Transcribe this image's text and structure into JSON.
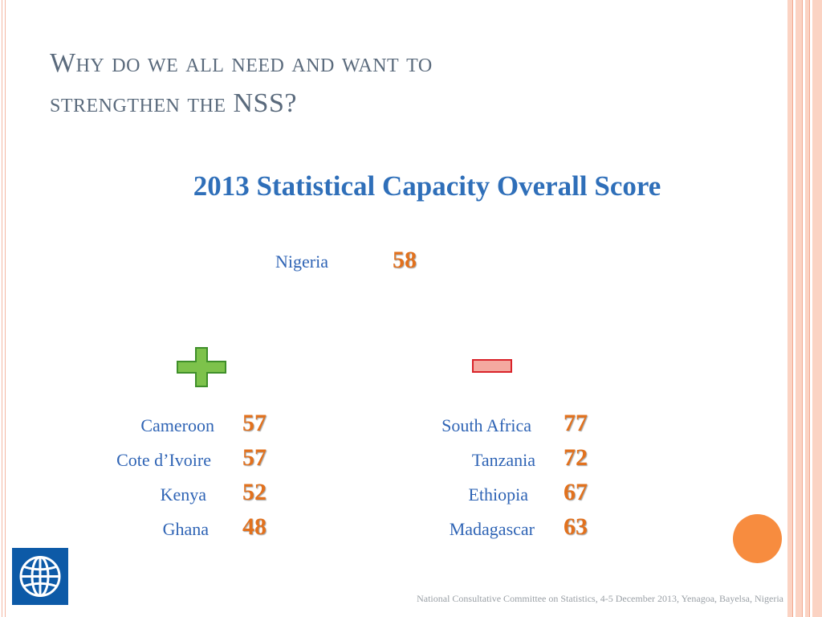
{
  "slide": {
    "title_line1": "Why do we all need and want to",
    "title_line2": "strengthen the NSS?",
    "subtitle": "2013 Statistical Capacity Overall Score",
    "nigeria": {
      "label": "Nigeria",
      "score": "58"
    },
    "plus_icon": "plus-icon",
    "minus_icon": "minus-icon",
    "left_group": [
      {
        "country": "Cameroon",
        "score": "57"
      },
      {
        "country": "Cote d’Ivoire",
        "score": "57"
      },
      {
        "country": "Kenya",
        "score": "52"
      },
      {
        "country": "Ghana",
        "score": "48"
      }
    ],
    "right_group": [
      {
        "country": "South Africa",
        "score": "77"
      },
      {
        "country": "Tanzania",
        "score": "72"
      },
      {
        "country": "Ethiopia",
        "score": "67"
      },
      {
        "country": "Madagascar",
        "score": "63"
      }
    ],
    "footer": "National Consultative Committee on Statistics, 4-5 December 2013, Yenagoa, Bayelsa, Nigeria",
    "logo_icon": "world-bank-globe-icon",
    "colors": {
      "title": "#5a6a7c",
      "subtitle": "#2f6fb9",
      "country": "#2f64b5",
      "score": "#e2711d",
      "plus": "#7dc24b",
      "minus": "#f4a9a0",
      "accent_circle": "#f78c3f",
      "logo_blue": "#0d5aa7"
    }
  }
}
